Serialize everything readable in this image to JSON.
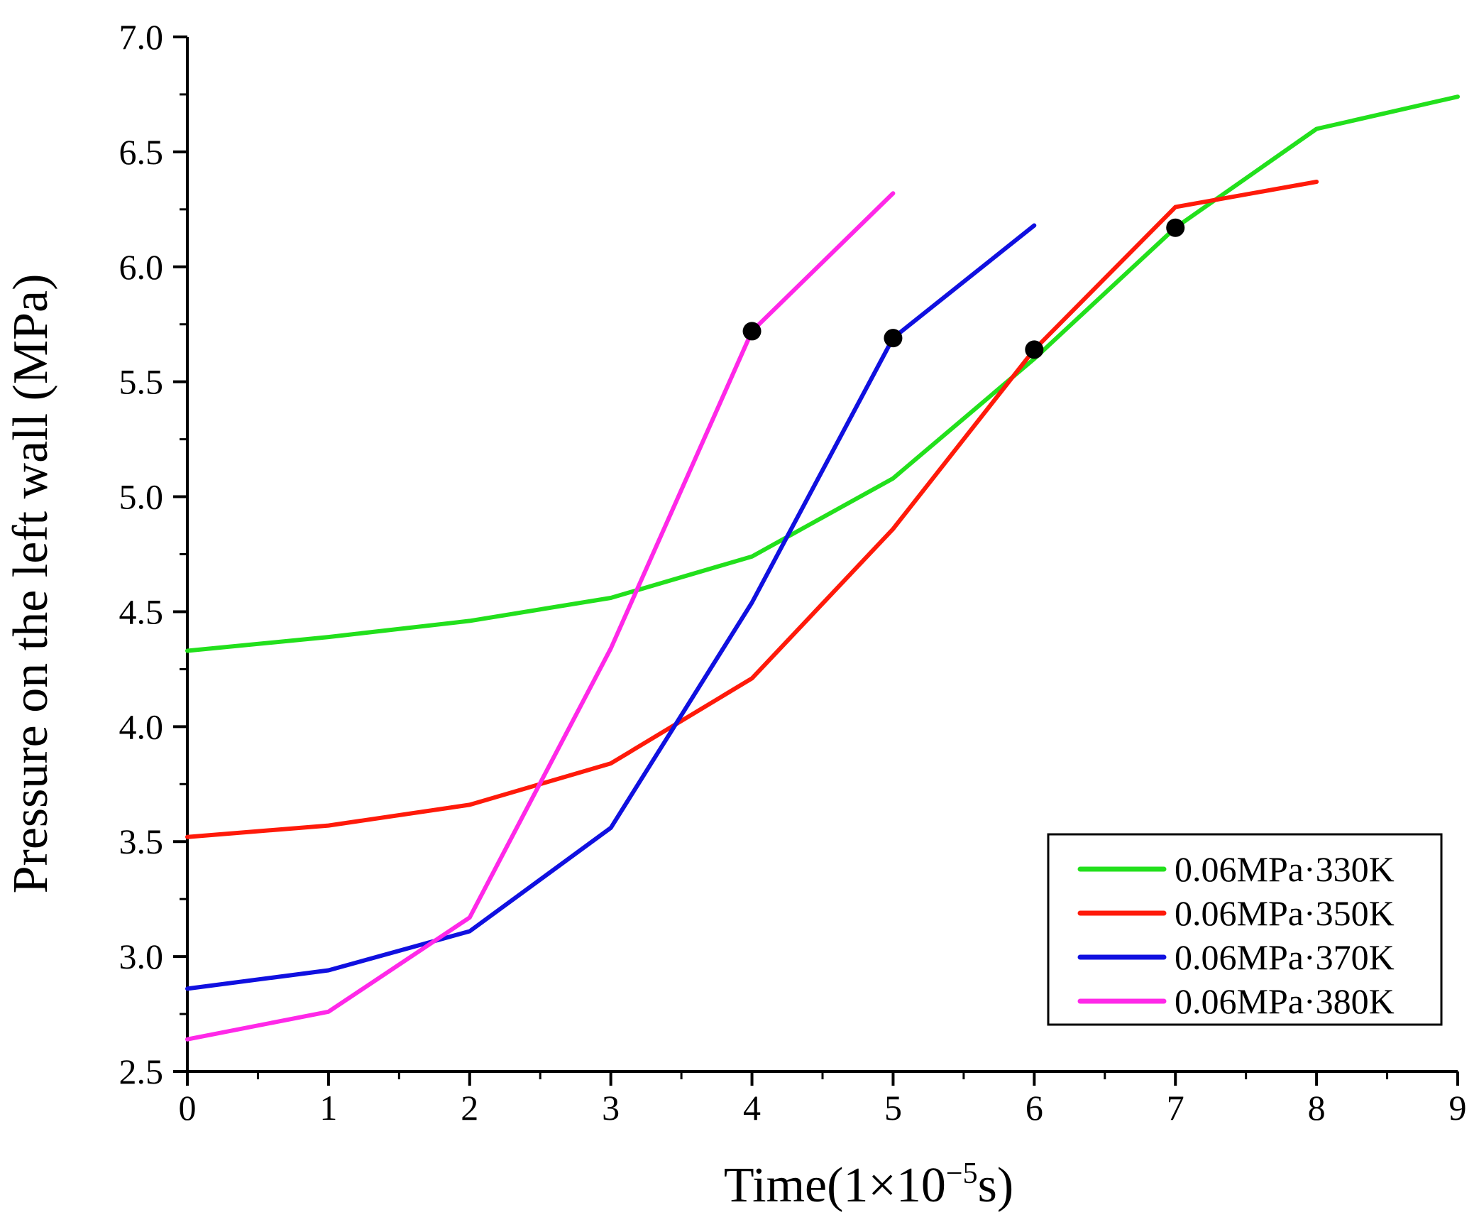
{
  "chart_data": {
    "type": "line",
    "title": "",
    "xlabel": "Time(1×10",
    "xlabel_exponent": "−5",
    "xlabel_suffix": "s)",
    "ylabel": "Pressure on the left wall (MPa)",
    "xlim": [
      0,
      9
    ],
    "ylim": [
      2.5,
      7.0
    ],
    "x_ticks": [
      "0",
      "1",
      "2",
      "3",
      "4",
      "5",
      "6",
      "7",
      "8",
      "9"
    ],
    "y_ticks": [
      "2.5",
      "3.0",
      "3.5",
      "4.0",
      "4.5",
      "5.0",
      "5.5",
      "6.0",
      "6.5",
      "7.0"
    ],
    "grid": false,
    "legend_position": "bottom-right",
    "series": [
      {
        "name": "0.06MPa·330K",
        "color": "#22e01c",
        "x": [
          0,
          1,
          2,
          3,
          4,
          5,
          6,
          7,
          8,
          9
        ],
        "y": [
          4.33,
          4.39,
          4.46,
          4.56,
          4.74,
          5.08,
          5.6,
          6.17,
          6.6,
          6.74
        ],
        "marker_at": [
          7
        ]
      },
      {
        "name": "0.06MPa·350K",
        "color": "#ff1a0a",
        "x": [
          0,
          1,
          2,
          3,
          4,
          5,
          6,
          7,
          8
        ],
        "y": [
          3.52,
          3.57,
          3.66,
          3.84,
          4.21,
          4.86,
          5.64,
          6.26,
          6.37
        ],
        "marker_at": [
          6
        ]
      },
      {
        "name": "0.06MPa·370K",
        "color": "#1010e0",
        "x": [
          0,
          1,
          2,
          3,
          4,
          5,
          6
        ],
        "y": [
          2.86,
          2.94,
          3.11,
          3.56,
          4.54,
          5.69,
          6.18
        ],
        "marker_at": [
          5
        ]
      },
      {
        "name": "0.06MPa·380K",
        "color": "#ff28e8",
        "x": [
          0,
          1,
          2,
          3,
          4,
          5
        ],
        "y": [
          2.64,
          2.76,
          3.17,
          4.34,
          5.72,
          6.32
        ],
        "marker_at": [
          4
        ]
      }
    ]
  }
}
